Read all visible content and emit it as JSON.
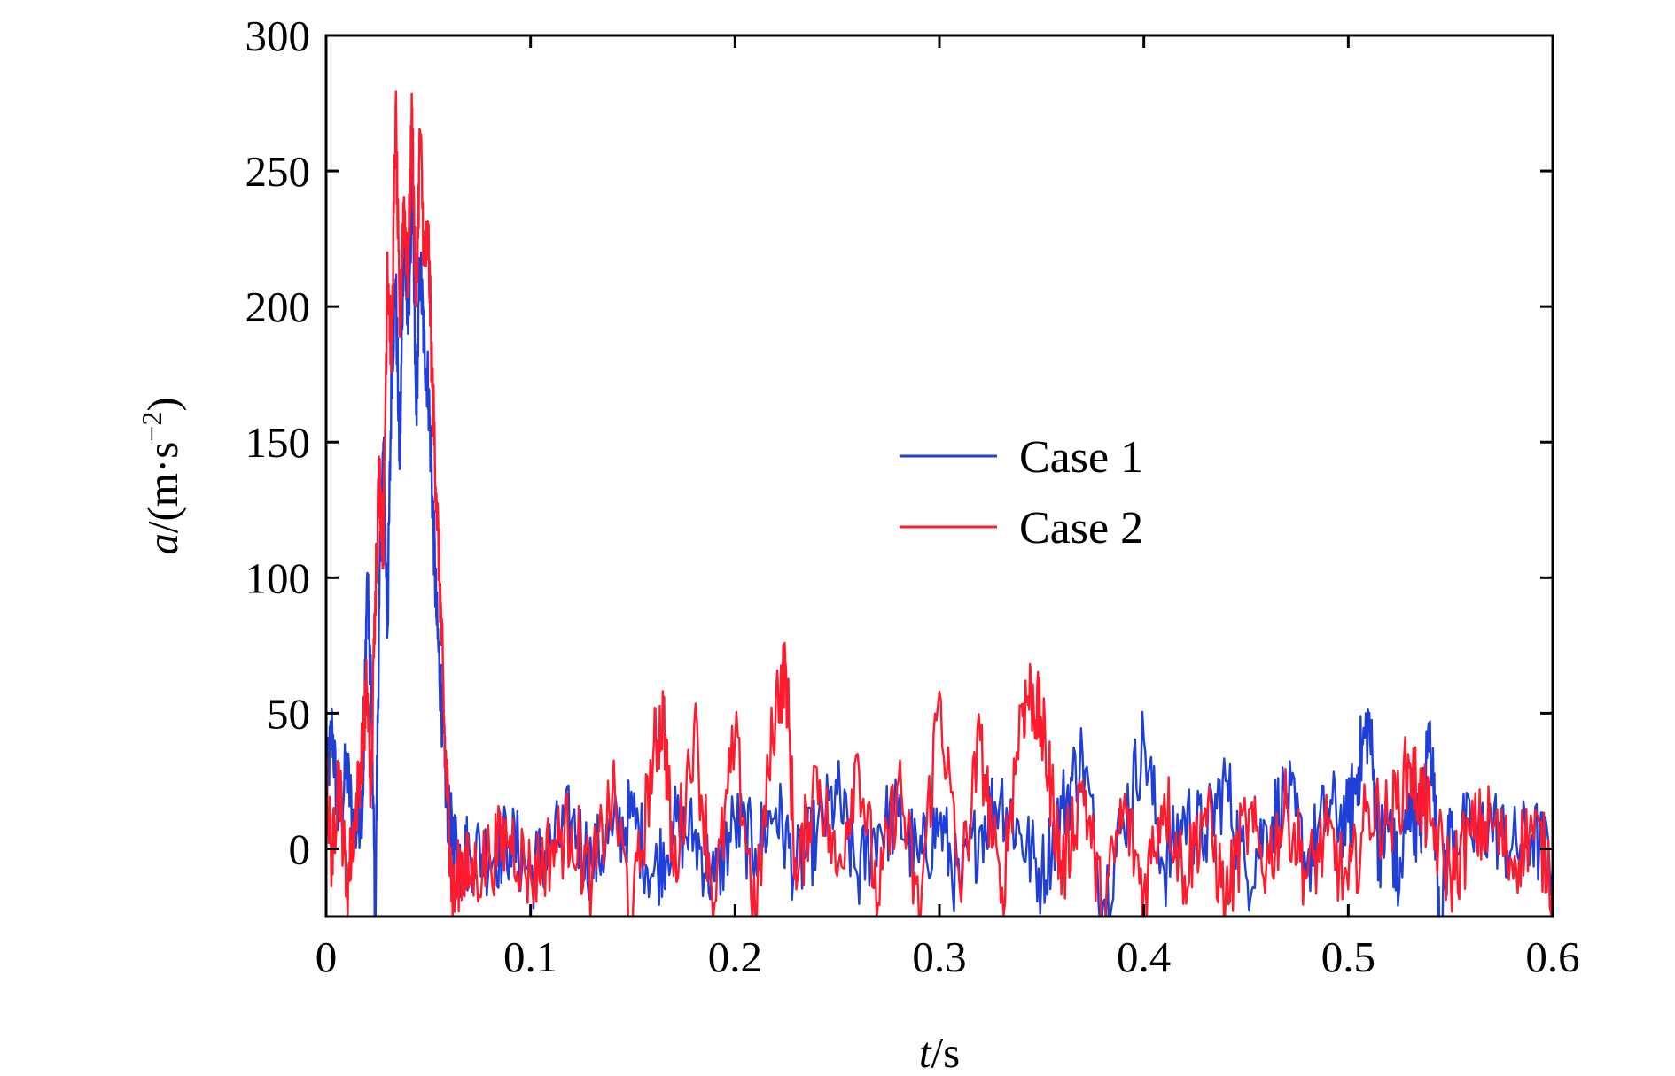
{
  "chart_data": {
    "type": "line",
    "title": "",
    "xlabel": {
      "var": "t",
      "unit": "/s"
    },
    "ylabel": {
      "var": "a",
      "unit_pre": "/(m·s",
      "unit_sup": "−2",
      "unit_post": ")"
    },
    "xlim": [
      0,
      0.6
    ],
    "ylim": [
      -25,
      300
    ],
    "xticks": [
      0,
      0.1,
      0.2,
      0.3,
      0.4,
      0.5,
      0.6
    ],
    "xtick_labels": [
      "0",
      "0.1",
      "0.2",
      "0.3",
      "0.4",
      "0.5",
      "0.6"
    ],
    "yticks": [
      0,
      50,
      100,
      150,
      200,
      250,
      300
    ],
    "ytick_labels": [
      "0",
      "50",
      "100",
      "150",
      "200",
      "250",
      "300"
    ],
    "grid": false,
    "legend_position": "center-right",
    "series": [
      {
        "name": "Case 1",
        "color": "#1f3fd6",
        "x": [
          0.0,
          0.003,
          0.006,
          0.01,
          0.014,
          0.018,
          0.02,
          0.022,
          0.024,
          0.026,
          0.028,
          0.03,
          0.032,
          0.034,
          0.036,
          0.038,
          0.04,
          0.042,
          0.044,
          0.046,
          0.048,
          0.05,
          0.052,
          0.054,
          0.056,
          0.058,
          0.06,
          0.062,
          0.066,
          0.07,
          0.08,
          0.09,
          0.1,
          0.11,
          0.12,
          0.13,
          0.14,
          0.15,
          0.16,
          0.17,
          0.18,
          0.19,
          0.2,
          0.21,
          0.22,
          0.23,
          0.24,
          0.25,
          0.26,
          0.27,
          0.28,
          0.29,
          0.3,
          0.31,
          0.32,
          0.33,
          0.34,
          0.35,
          0.36,
          0.37,
          0.38,
          0.39,
          0.4,
          0.41,
          0.42,
          0.43,
          0.44,
          0.45,
          0.46,
          0.47,
          0.48,
          0.49,
          0.5,
          0.505,
          0.51,
          0.515,
          0.52,
          0.525,
          0.53,
          0.535,
          0.54,
          0.545,
          0.55,
          0.56,
          0.57,
          0.58,
          0.59,
          0.6
        ],
        "y": [
          20,
          45,
          8,
          30,
          5,
          20,
          100,
          60,
          -25,
          90,
          150,
          80,
          175,
          210,
          140,
          230,
          190,
          245,
          160,
          215,
          185,
          170,
          130,
          85,
          60,
          30,
          10,
          5,
          -5,
          0,
          -2,
          3,
          -8,
          0,
          10,
          -5,
          5,
          12,
          -10,
          8,
          5,
          -12,
          10,
          0,
          15,
          -8,
          5,
          20,
          -10,
          8,
          12,
          -5,
          10,
          -15,
          8,
          20,
          5,
          -10,
          15,
          35,
          -20,
          10,
          40,
          -8,
          12,
          5,
          25,
          -10,
          8,
          20,
          -5,
          15,
          10,
          30,
          48,
          0,
          10,
          -15,
          20,
          5,
          47,
          -25,
          8,
          5,
          10,
          0,
          5,
          -5
        ]
      },
      {
        "name": "Case 2",
        "color": "#ff1a2e",
        "x": [
          0.0,
          0.003,
          0.006,
          0.01,
          0.014,
          0.018,
          0.02,
          0.022,
          0.024,
          0.026,
          0.028,
          0.03,
          0.032,
          0.034,
          0.036,
          0.038,
          0.04,
          0.042,
          0.044,
          0.046,
          0.048,
          0.05,
          0.052,
          0.054,
          0.056,
          0.058,
          0.06,
          0.062,
          0.066,
          0.07,
          0.08,
          0.09,
          0.1,
          0.11,
          0.12,
          0.13,
          0.14,
          0.15,
          0.16,
          0.165,
          0.17,
          0.18,
          0.19,
          0.2,
          0.21,
          0.22,
          0.225,
          0.23,
          0.24,
          0.25,
          0.26,
          0.27,
          0.28,
          0.29,
          0.3,
          0.31,
          0.32,
          0.33,
          0.34,
          0.345,
          0.35,
          0.355,
          0.36,
          0.37,
          0.38,
          0.39,
          0.4,
          0.41,
          0.42,
          0.43,
          0.44,
          0.45,
          0.46,
          0.47,
          0.48,
          0.49,
          0.5,
          0.51,
          0.52,
          0.53,
          0.535,
          0.54,
          0.55,
          0.56,
          0.57,
          0.58,
          0.59,
          0.6
        ],
        "y": [
          25,
          -5,
          30,
          -15,
          10,
          40,
          60,
          20,
          95,
          140,
          110,
          220,
          180,
          273,
          190,
          240,
          210,
          272,
          200,
          265,
          215,
          225,
          170,
          130,
          90,
          40,
          10,
          -20,
          -5,
          -10,
          -3,
          5,
          -10,
          0,
          8,
          -12,
          20,
          -25,
          35,
          50,
          -10,
          45,
          -20,
          40,
          -25,
          55,
          66,
          -15,
          30,
          -10,
          35,
          -20,
          25,
          -25,
          58,
          -15,
          40,
          -20,
          52,
          58,
          45,
          20,
          -10,
          25,
          -25,
          15,
          -15,
          20,
          -10,
          15,
          -20,
          10,
          -5,
          15,
          -10,
          5,
          -15,
          15,
          10,
          30,
          20,
          10,
          -10,
          5,
          10,
          -5,
          8,
          -10
        ]
      }
    ]
  }
}
